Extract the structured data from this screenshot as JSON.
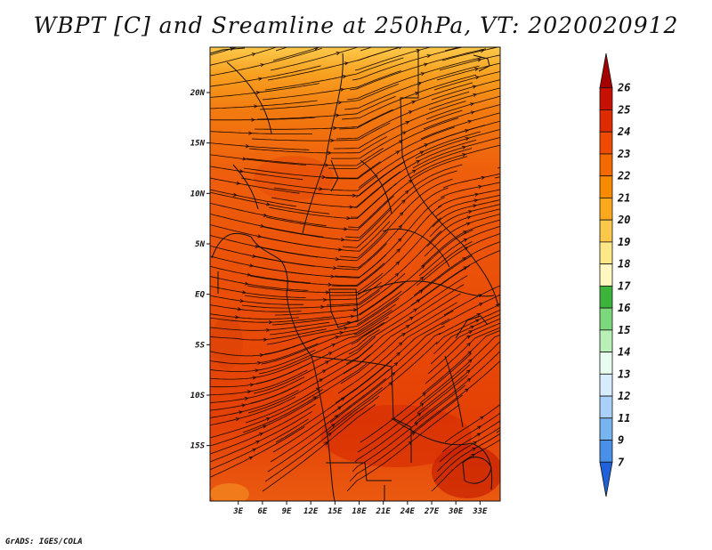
{
  "title": "WBPT [C] and Sreamline at 250hPa, VT: 2020020912",
  "credit": "GrADS: IGES/COLA",
  "map": {
    "lat_range": [
      -20.5,
      24.5
    ],
    "lon_range": [
      -0.5,
      35.5
    ],
    "lat_ticks": [
      "20N",
      "15N",
      "10N",
      "5N",
      "EQ",
      "5S",
      "10S",
      "15S"
    ],
    "lon_ticks": [
      "3E",
      "6E",
      "9E",
      "12E",
      "15E",
      "18E",
      "21E",
      "24E",
      "27E",
      "30E",
      "33E"
    ],
    "field": "WBPT",
    "level": "250hPa",
    "valid_time": "2020020912"
  },
  "colorbar": {
    "labels": [
      "26",
      "25",
      "24",
      "23",
      "22",
      "21",
      "20",
      "19",
      "18",
      "17",
      "16",
      "15",
      "14",
      "13",
      "12",
      "11",
      "9",
      "7"
    ],
    "colors": [
      "#a50000",
      "#c81000",
      "#e02a00",
      "#ee4a00",
      "#f46a00",
      "#f88a00",
      "#faa81e",
      "#fcc84a",
      "#fde888",
      "#fff8c0",
      "#3cb43c",
      "#7cd87c",
      "#b8f0b8",
      "#e8fcf0",
      "#d8ecff",
      "#a8d0f8",
      "#78b4f0",
      "#4890e8",
      "#2060d8"
    ]
  }
}
